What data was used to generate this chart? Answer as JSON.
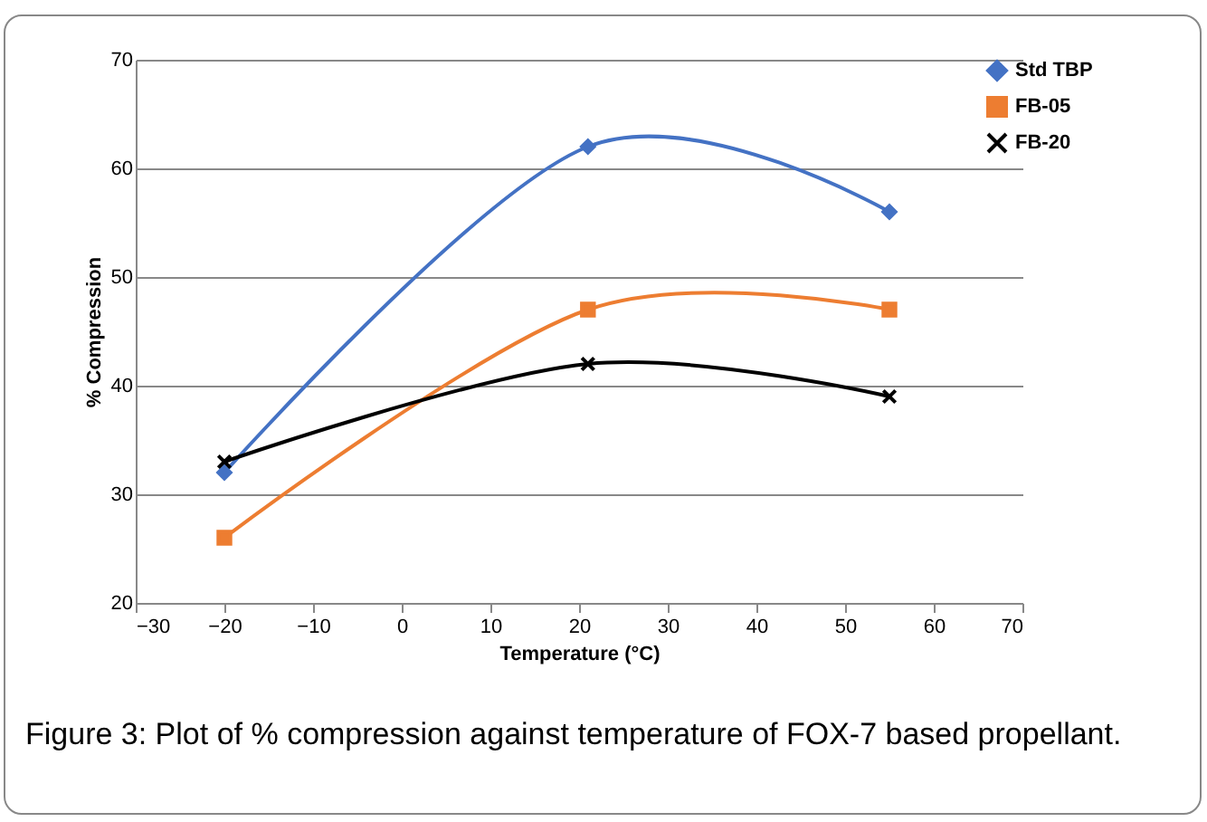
{
  "chart_data": {
    "type": "line",
    "xlabel": "Temperature (°C)",
    "ylabel": "% Compression",
    "annotations": [
      "Figure 3:  Plot of % compression against temperature of FOX-7 based propellant."
    ],
    "x": [
      -20,
      21,
      55
    ],
    "series": [
      {
        "name": "Std TBP",
        "color": "#4472c4",
        "values": [
          32,
          62,
          56
        ],
        "marker": "diamond"
      },
      {
        "name": "FB-05",
        "color": "#ed7d31",
        "values": [
          26,
          47,
          47
        ],
        "marker": "square"
      },
      {
        "name": "FB-20",
        "color": "#000000",
        "values": [
          33,
          42,
          39
        ],
        "marker": "cross"
      }
    ],
    "xlim": [
      -30,
      70
    ],
    "xticks": [
      -30,
      -20,
      -10,
      0,
      10,
      20,
      30,
      40,
      50,
      60,
      70
    ],
    "ylim": [
      20,
      70
    ],
    "yticks": [
      20,
      30,
      40,
      50,
      60,
      70
    ],
    "grid": "y",
    "legend": "top right",
    "line_style": "solid"
  }
}
